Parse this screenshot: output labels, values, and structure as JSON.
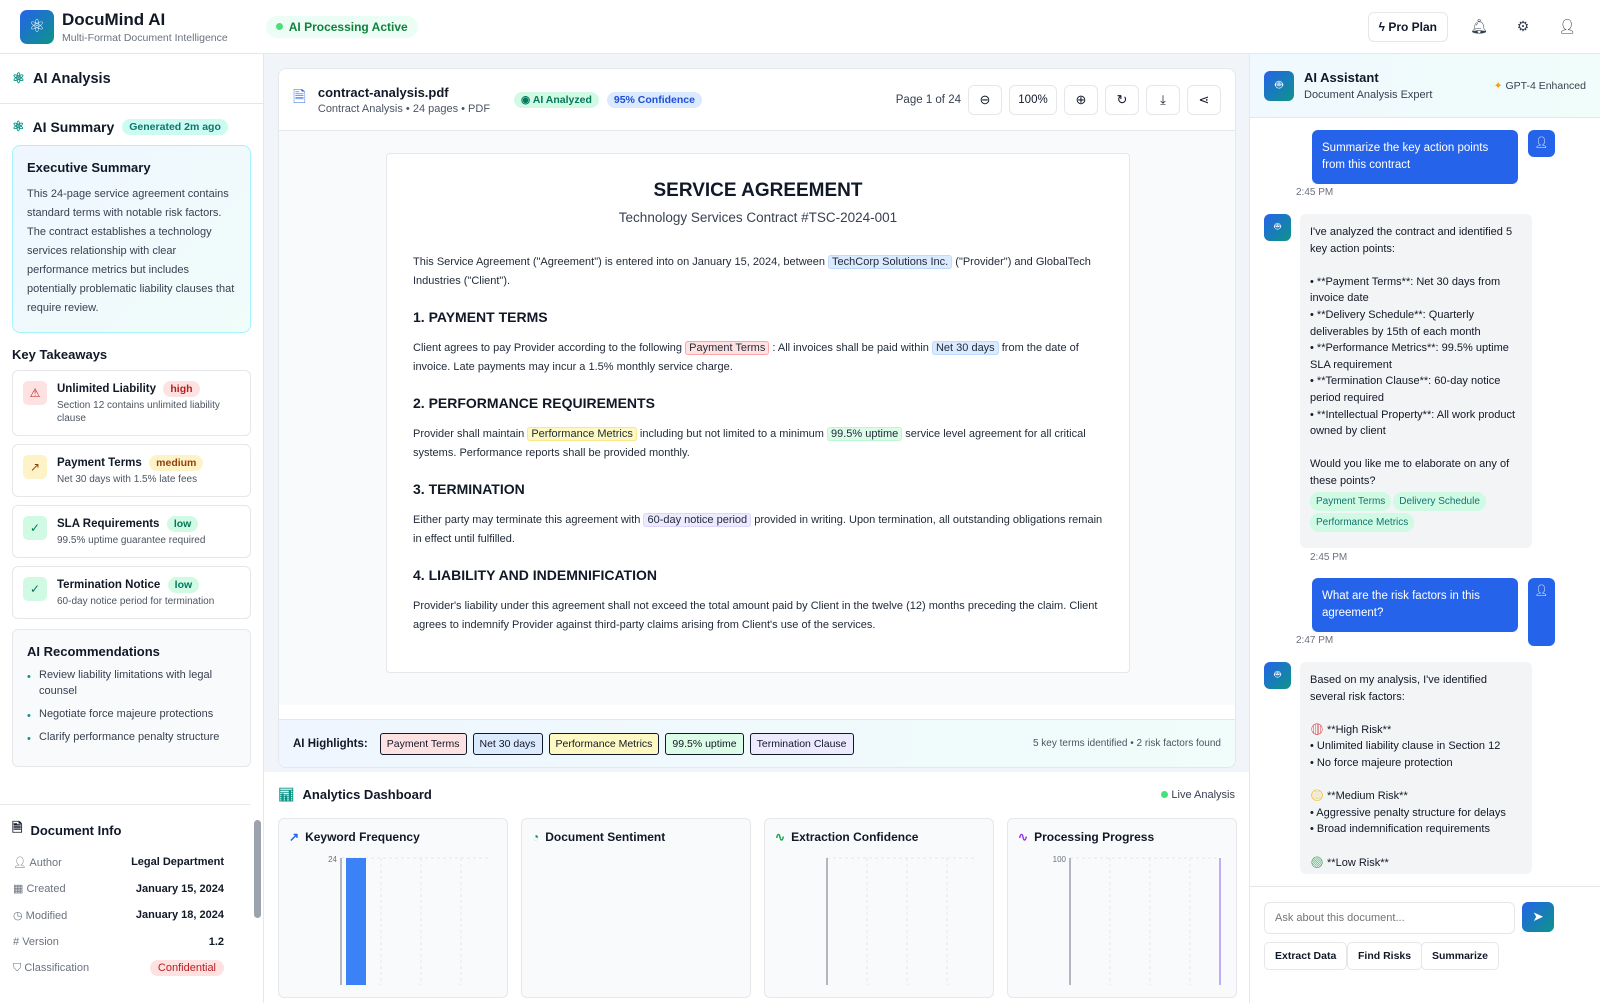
{
  "header": {
    "app_name": "DocuMind AI",
    "tagline": "Multi-Format Document Intelligence",
    "status": "AI Processing Active",
    "pro_plan": "Pro Plan"
  },
  "left": {
    "title": "AI Analysis",
    "summary_title": "AI Summary",
    "summary_badge": "Generated 2m ago",
    "exec_title": "Executive Summary",
    "exec_text": "This 24-page service agreement contains standard terms with notable risk factors. The contract establishes a technology services relationship with clear performance metrics but includes potentially problematic liability clauses that require review.",
    "takeaways_title": "Key Takeaways",
    "takeaways": [
      {
        "title": "Unlimited Liability",
        "level": "high",
        "desc": "Section 12 contains unlimited liability clause"
      },
      {
        "title": "Payment Terms",
        "level": "medium",
        "desc": "Net 30 days with 1.5% late fees"
      },
      {
        "title": "SLA Requirements",
        "level": "low",
        "desc": "99.5% uptime guarantee required"
      },
      {
        "title": "Termination Notice",
        "level": "low",
        "desc": "60-day notice period for termination"
      }
    ],
    "rec_title": "AI Recommendations",
    "recommendations": [
      "Review liability limitations with legal counsel",
      "Negotiate force majeure protections",
      "Clarify performance penalty structure"
    ],
    "info_title": "Document Info",
    "info": [
      {
        "label": "Author",
        "value": "Legal Department"
      },
      {
        "label": "Created",
        "value": "January 15, 2024"
      },
      {
        "label": "Modified",
        "value": "January 18, 2024"
      },
      {
        "label": "Version",
        "value": "1.2"
      },
      {
        "label": "Classification",
        "value": "Confidential"
      }
    ]
  },
  "viewer": {
    "filename": "contract-analysis.pdf",
    "meta": "Contract Analysis • 24 pages • PDF",
    "badge_analyzed": "AI Analyzed",
    "badge_confidence": "95% Confidence",
    "page_indicator": "Page 1 of 24",
    "zoom": "100%",
    "doc": {
      "title": "SERVICE AGREEMENT",
      "subtitle": "Technology Services Contract #TSC-2024-001",
      "intro_a": "This Service Agreement (\"Agreement\") is entered into on January 15, 2024, between ",
      "intro_h": "TechCorp Solutions Inc.",
      "intro_b": " (\"Provider\") and GlobalTech Industries (\"Client\").",
      "s1": "1. PAYMENT TERMS",
      "s1_a": "Client agrees to pay Provider according to the following ",
      "s1_h1": "Payment Terms",
      "s1_b": " : All invoices shall be paid within ",
      "s1_h2": "Net 30 days",
      "s1_c": " from the date of invoice. Late payments may incur a 1.5% monthly service charge.",
      "s2": "2. PERFORMANCE REQUIREMENTS",
      "s2_a": "Provider shall maintain ",
      "s2_h1": "Performance Metrics",
      "s2_b": " including but not limited to a minimum ",
      "s2_h2": "99.5% uptime",
      "s2_c": " service level agreement for all critical systems. Performance reports shall be provided monthly.",
      "s3": "3. TERMINATION",
      "s3_a": "Either party may terminate this agreement with ",
      "s3_h": "60-day notice period",
      "s3_b": " provided in writing. Upon termination, all outstanding obligations remain in effect until fulfilled.",
      "s4": "4. LIABILITY AND INDEMNIFICATION",
      "s4_text": "Provider's liability under this agreement shall not exceed the total amount paid by Client in the twelve (12) months preceding the claim. Client agrees to indemnify Provider against third-party claims arising from Client's use of the services."
    },
    "highlights_label": "AI Highlights:",
    "highlights": [
      "Payment Terms",
      "Net 30 days",
      "Performance Metrics",
      "99.5% uptime",
      "Termination Clause"
    ],
    "highlights_summary": "5 key terms identified • 2 risk factors found"
  },
  "dashboard": {
    "title": "Analytics Dashboard",
    "live": "Live Analysis",
    "cards": [
      "Keyword Frequency",
      "Document Sentiment",
      "Extraction Confidence",
      "Processing Progress"
    ]
  },
  "chart_data": [
    {
      "type": "bar",
      "title": "Keyword Frequency",
      "yticks": [
        24
      ],
      "values": [
        24
      ],
      "color": "#3b82f6"
    },
    {
      "type": "pie",
      "title": "Document Sentiment"
    },
    {
      "type": "line",
      "title": "Extraction Confidence"
    },
    {
      "type": "bar",
      "title": "Processing Progress",
      "yticks": [
        100
      ],
      "color": "#8b5cf6"
    }
  ],
  "assistant": {
    "title": "AI Assistant",
    "subtitle": "Document Analysis Expert",
    "model": "GPT-4 Enhanced",
    "messages": [
      {
        "text": "Summarize the key action points from this contract",
        "time": "2:45 PM"
      },
      {
        "text": "I've analyzed the contract and identified 5 key action points:\n\n• **Payment Terms**: Net 30 days from invoice date\n• **Delivery Schedule**: Quarterly deliverables by 15th of each month\n• **Performance Metrics**: 99.5% uptime SLA requirement\n• **Termination Clause**: 60-day notice period required\n• **Intellectual Property**: All work product owned by client\n\nWould you like me to elaborate on any of these points?",
        "chips": [
          "Payment Terms",
          "Delivery Schedule",
          "Performance Metrics"
        ],
        "time": "2:45 PM"
      },
      {
        "text": "What are the risk factors in this agreement?",
        "time": "2:47 PM"
      },
      {
        "text": "Based on my analysis, I've identified several risk factors:",
        "high": "**High Risk**",
        "high_items": "• Unlimited liability clause in Section 12\n• No force majeure protection",
        "medium": "**Medium Risk**",
        "medium_items": "• Aggressive penalty structure for delays\n• Broad indemnification requirements",
        "low": "**Low Risk**"
      }
    ],
    "input_placeholder": "Ask about this document...",
    "actions": [
      "Extract Data",
      "Find Risks",
      "Summarize"
    ]
  }
}
